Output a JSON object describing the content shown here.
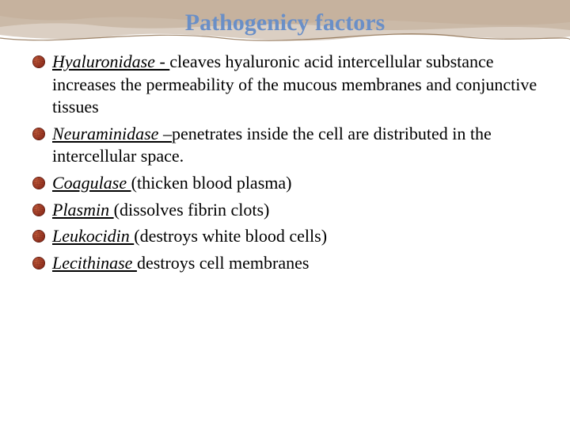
{
  "title": {
    "text": "Pathogenicy factors",
    "color": "#6a8fc7",
    "fontsize": 30
  },
  "bullet": {
    "fill": "#8a2a1a",
    "stroke": "#5a1a10"
  },
  "decoration": {
    "wave1": "#d9c8b8",
    "wave2": "#c9b8a4",
    "wave3": "#b8a088",
    "border": "#8a6a4a"
  },
  "items": [
    {
      "term": "Hyaluronidase - ",
      "rest": "cleaves hyaluronic acid intercellular substance increases the permeability of the mucous membranes and conjunctive tissues"
    },
    {
      "term": "Neuraminidase –",
      "rest": "penetrates inside the cell are distributed in the intercellular space."
    },
    {
      "term": "Coagulase ",
      "rest": "(thicken blood plasma)"
    },
    {
      "term": "Plasmin ",
      "rest": "(dissolves fibrin clots)"
    },
    {
      "term": "Leukocidin ",
      "rest": "(destroys white blood cells)"
    },
    {
      "term": "Lecithinase ",
      "rest": "destroys cell membranes"
    }
  ]
}
